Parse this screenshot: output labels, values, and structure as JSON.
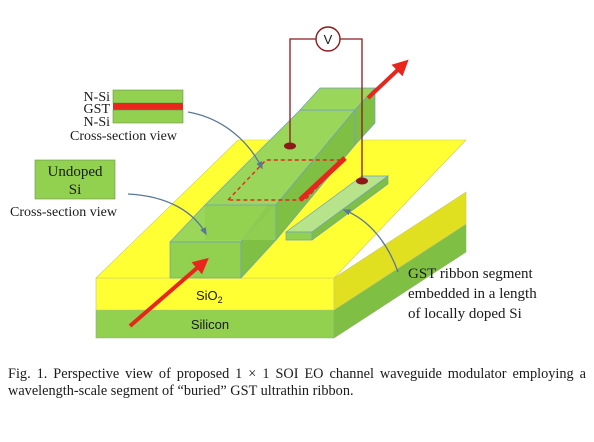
{
  "labels": {
    "nsi_top": "N-Si",
    "gst": "GST",
    "nsi_bottom": "N-Si",
    "cross_section_1": "Cross-section view",
    "undoped_line1": "Undoped",
    "undoped_line2": "Si",
    "cross_section_2": "Cross-section view",
    "voltmeter": "V",
    "sio2": "SiO",
    "sio2_sub": "2",
    "silicon": "Silicon",
    "gst_ribbon_line1": "GST ribbon segment",
    "gst_ribbon_line2": "embedded in a length",
    "gst_ribbon_line3": "of locally doped Si"
  },
  "caption": {
    "text": "Fig. 1.   Perspective view of proposed 1 × 1 SOI EO channel waveguide modulator employing a wavelength-scale segment of “buried” GST ultrathin ribbon."
  },
  "colors": {
    "green": "#92d050",
    "green_dark": "#6ea83a",
    "yellow": "#ffff33",
    "yellow_dark": "#d9d900",
    "red": "#e8261c",
    "wire": "#8b1a1a",
    "arrow_blue": "#5a7896"
  }
}
